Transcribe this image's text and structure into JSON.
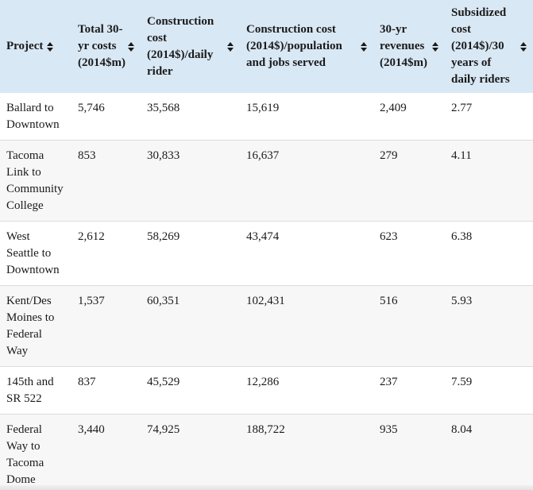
{
  "table": {
    "columns": [
      {
        "id": "project",
        "label": "Project"
      },
      {
        "id": "total-30yr-costs",
        "label": "Total 30-yr costs (2014$m)"
      },
      {
        "id": "construction-cost-daily-rider",
        "label": "Construction cost (2014$)/daily rider"
      },
      {
        "id": "construction-cost-population-jobs",
        "label": "Construction cost (2014$)/population and jobs served"
      },
      {
        "id": "30yr-revenues",
        "label": "30-yr revenues (2014$m)"
      },
      {
        "id": "subsidized-cost",
        "label": "Subsidized cost (2014$)/30 years of daily riders"
      }
    ],
    "rows": [
      [
        "Ballard to Downtown",
        "5,746",
        "35,568",
        "15,619",
        "2,409",
        "2.77"
      ],
      [
        "Tacoma Link to Community College",
        "853",
        "30,833",
        "16,637",
        "279",
        "4.11"
      ],
      [
        "West Seattle to Downtown",
        "2,612",
        "58,269",
        "43,474",
        "623",
        "6.38"
      ],
      [
        "Kent/Des Moines to Federal Way",
        "1,537",
        "60,351",
        "102,431",
        "516",
        "5.93"
      ],
      [
        "145th and SR 522",
        "837",
        "45,529",
        "12,286",
        "237",
        "7.59"
      ],
      [
        "Federal Way to Tacoma Dome",
        "3,440",
        "74,925",
        "188,722",
        "935",
        "8.04"
      ]
    ]
  },
  "icons": {
    "sort": "sort-icon (stacked up/down triangles)"
  },
  "colors": {
    "header_bg": "#d9e8f5",
    "alt_row_bg": "#f7f7f7",
    "divider": "#dcdcdc",
    "text": "#1a1a1a"
  }
}
